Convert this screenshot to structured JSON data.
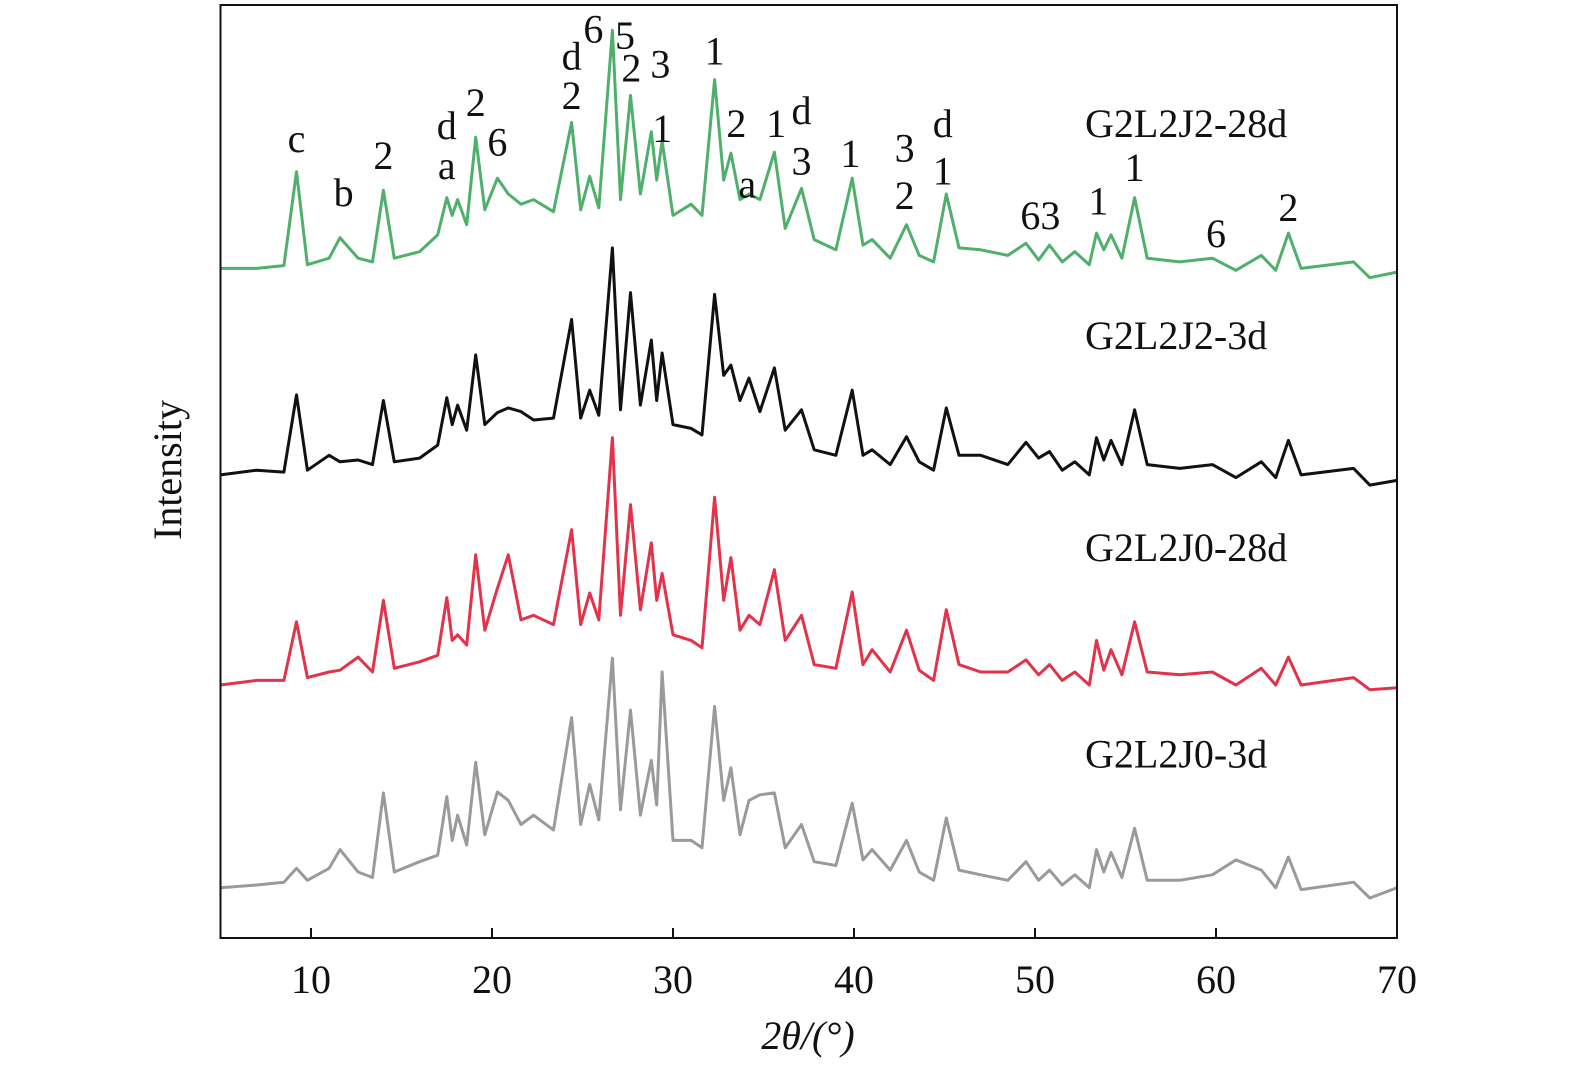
{
  "chart_data": {
    "type": "line",
    "xlabel": "2θ/(°)",
    "ylabel": "Intensity",
    "xlim": [
      5,
      70
    ],
    "xticks": [
      10,
      20,
      30,
      40,
      50,
      60,
      70
    ],
    "ylim": [
      0,
      100
    ],
    "x": [
      5,
      7,
      8.5,
      9.2,
      9.8,
      11,
      11.6,
      12.6,
      13.4,
      14,
      14.6,
      16,
      17,
      17.5,
      17.8,
      18.1,
      18.6,
      19.1,
      19.6,
      20.3,
      20.9,
      21.6,
      22.3,
      23.4,
      24.4,
      24.9,
      25.4,
      25.9,
      26.65,
      27.1,
      27.65,
      28.2,
      28.8,
      29.1,
      29.4,
      30,
      31,
      31.6,
      32.3,
      32.8,
      33.2,
      33.7,
      34.2,
      34.8,
      35.6,
      36.2,
      37.1,
      37.8,
      39,
      39.9,
      40.5,
      41,
      42,
      42.9,
      43.6,
      44.4,
      45.1,
      45.8,
      47,
      48.5,
      49.5,
      50.2,
      50.8,
      51.5,
      52.2,
      53,
      53.4,
      53.8,
      54.2,
      54.8,
      55.5,
      56.2,
      58,
      59.8,
      61.1,
      62.5,
      63.3,
      64,
      64.7,
      67.6,
      68.5,
      70
    ],
    "series": [
      {
        "name": "G2L2J2-28d",
        "color": "#4fb06b",
        "values": [
          72.0,
          72.0,
          72.3,
          82.4,
          72.4,
          73.1,
          75.3,
          73.1,
          72.7,
          80.4,
          73.1,
          73.8,
          75.6,
          79.6,
          77.7,
          79.4,
          76.7,
          86.1,
          78.3,
          81.7,
          80.0,
          78.9,
          79.4,
          78.1,
          87.7,
          78.3,
          81.9,
          78.5,
          97.6,
          79.4,
          90.6,
          80.0,
          86.7,
          81.5,
          85.7,
          77.7,
          78.9,
          77.7,
          92.3,
          81.5,
          84.4,
          79.4,
          80.0,
          79.4,
          84.5,
          76.3,
          80.6,
          75.1,
          74.0,
          81.7,
          74.5,
          75.1,
          73.1,
          76.7,
          73.4,
          72.7,
          80.0,
          74.2,
          74.0,
          73.4,
          74.7,
          72.9,
          74.5,
          72.7,
          73.8,
          72.4,
          75.8,
          74.0,
          75.6,
          73.1,
          79.6,
          73.1,
          72.7,
          73.1,
          71.8,
          73.4,
          71.8,
          75.8,
          72.0,
          72.7,
          71.0,
          71.6
        ]
      },
      {
        "name": "G2L2J2-3d",
        "color": "#111111",
        "values": [
          49.8,
          50.3,
          50.1,
          58.4,
          50.3,
          51.9,
          51.2,
          51.4,
          50.9,
          57.8,
          51.2,
          51.6,
          53.0,
          58.1,
          55.2,
          57.3,
          54.6,
          62.7,
          55.2,
          56.5,
          57.0,
          56.6,
          55.7,
          55.9,
          66.5,
          55.9,
          58.9,
          56.2,
          74.2,
          56.8,
          69.4,
          57.3,
          64.3,
          57.8,
          62.9,
          55.2,
          54.8,
          54.1,
          69.2,
          60.5,
          61.6,
          57.8,
          60.2,
          56.6,
          61.3,
          54.6,
          56.8,
          52.5,
          51.9,
          58.9,
          51.9,
          52.5,
          50.9,
          53.9,
          51.2,
          50.3,
          57.0,
          51.9,
          51.9,
          50.9,
          53.3,
          51.6,
          52.3,
          50.3,
          51.2,
          49.8,
          53.8,
          51.4,
          53.5,
          50.9,
          56.8,
          50.9,
          50.5,
          50.9,
          49.5,
          51.2,
          49.5,
          53.5,
          49.8,
          50.5,
          48.7,
          49.2
        ]
      },
      {
        "name": "G2L2J0-28d",
        "color": "#e2334b",
        "values": [
          27.2,
          27.7,
          27.7,
          34.0,
          28.0,
          28.6,
          28.8,
          30.2,
          28.6,
          36.3,
          29.0,
          29.7,
          30.4,
          36.6,
          32.0,
          32.6,
          31.5,
          41.2,
          33.1,
          37.6,
          41.2,
          34.2,
          34.7,
          33.7,
          43.9,
          33.7,
          37.1,
          34.2,
          53.8,
          34.7,
          46.6,
          35.3,
          42.5,
          36.3,
          39.2,
          32.6,
          32.0,
          31.2,
          47.4,
          36.3,
          40.9,
          33.1,
          34.7,
          33.7,
          39.6,
          32.0,
          34.7,
          29.4,
          29.0,
          37.2,
          29.4,
          31.0,
          28.6,
          33.1,
          28.8,
          27.7,
          35.3,
          29.4,
          28.6,
          28.6,
          29.9,
          28.3,
          29.4,
          27.7,
          28.6,
          27.2,
          32.0,
          28.8,
          31.0,
          28.3,
          34.0,
          28.6,
          28.3,
          28.6,
          27.2,
          29.0,
          27.2,
          30.2,
          27.2,
          28.0,
          26.7,
          26.9
        ]
      },
      {
        "name": "G2L2J0-3d",
        "color": "#9a9a9a",
        "values": [
          5.4,
          5.7,
          6.0,
          7.5,
          6.2,
          7.5,
          9.5,
          7.1,
          6.5,
          15.6,
          7.1,
          8.2,
          8.9,
          15.2,
          10.5,
          13.2,
          10.0,
          18.9,
          11.1,
          15.7,
          14.8,
          12.2,
          13.2,
          11.6,
          23.7,
          12.2,
          16.5,
          12.7,
          30.1,
          13.8,
          24.5,
          13.2,
          19.1,
          14.3,
          28.6,
          10.5,
          10.5,
          9.7,
          24.9,
          14.8,
          18.3,
          11.1,
          14.8,
          15.4,
          15.6,
          9.7,
          12.2,
          8.2,
          7.8,
          14.5,
          8.4,
          9.5,
          7.3,
          10.5,
          7.1,
          6.2,
          12.9,
          7.3,
          6.8,
          6.2,
          8.2,
          6.2,
          7.3,
          5.7,
          6.8,
          5.4,
          9.5,
          7.1,
          9.2,
          6.5,
          11.8,
          6.2,
          6.2,
          6.8,
          8.4,
          7.3,
          5.4,
          8.7,
          5.2,
          6.0,
          4.3,
          5.4
        ]
      }
    ],
    "annotations": [
      {
        "text": "c",
        "x": 9.2,
        "y": 85.5
      },
      {
        "text": "b",
        "x": 11.8,
        "y": 79.7
      },
      {
        "text": "2",
        "x": 14,
        "y": 83.7
      },
      {
        "text": "a",
        "x": 17.5,
        "y": 82.6
      },
      {
        "text": "d",
        "x": 17.5,
        "y": 86.9
      },
      {
        "text": "2",
        "x": 19.1,
        "y": 89.4
      },
      {
        "text": "6",
        "x": 20.3,
        "y": 85.1
      },
      {
        "text": "2",
        "x": 24.4,
        "y": 90.1
      },
      {
        "text": "d",
        "x": 24.4,
        "y": 94.4
      },
      {
        "text": "6",
        "x": 25.6,
        "y": 97.3
      },
      {
        "text": "5",
        "x": 27.35,
        "y": 96.6
      },
      {
        "text": "2",
        "x": 27.7,
        "y": 93.1
      },
      {
        "text": "3",
        "x": 29.3,
        "y": 93.5
      },
      {
        "text": "1",
        "x": 29.4,
        "y": 86.6
      },
      {
        "text": "1",
        "x": 32.3,
        "y": 94.9
      },
      {
        "text": "2",
        "x": 33.5,
        "y": 87.1
      },
      {
        "text": "a",
        "x": 34.1,
        "y": 80.6
      },
      {
        "text": "1",
        "x": 35.7,
        "y": 87.1
      },
      {
        "text": "d",
        "x": 37.1,
        "y": 88.5
      },
      {
        "text": "3",
        "x": 37.1,
        "y": 83.1
      },
      {
        "text": "1",
        "x": 39.8,
        "y": 83.9
      },
      {
        "text": "3",
        "x": 42.8,
        "y": 84.5
      },
      {
        "text": "2",
        "x": 42.8,
        "y": 79.4
      },
      {
        "text": "d",
        "x": 44.9,
        "y": 87.1
      },
      {
        "text": "1",
        "x": 44.9,
        "y": 82.0
      },
      {
        "text": "63",
        "x": 50.3,
        "y": 77.2
      },
      {
        "text": "1",
        "x": 53.5,
        "y": 78.8
      },
      {
        "text": "1",
        "x": 55.5,
        "y": 82.4
      },
      {
        "text": "6",
        "x": 60.0,
        "y": 75.3
      },
      {
        "text": "2",
        "x": 64.0,
        "y": 78.1
      }
    ]
  }
}
